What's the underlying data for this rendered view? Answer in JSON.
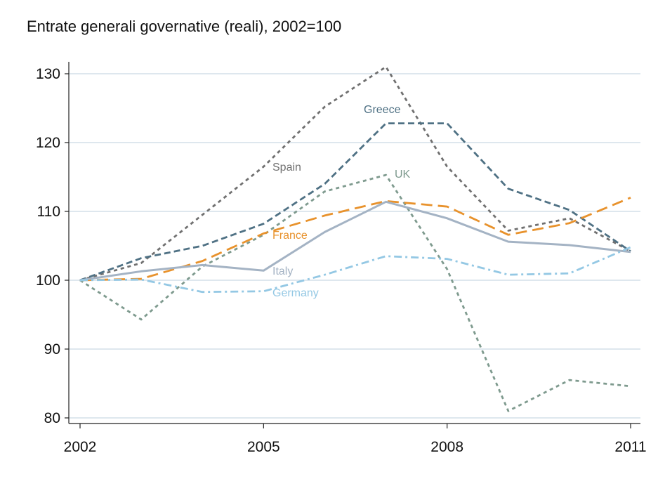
{
  "chart_data": {
    "type": "line",
    "title": "Entrate generali governative (reali), 2002=100",
    "xlabel": "",
    "ylabel": "",
    "x": [
      2002,
      2003,
      2004,
      2005,
      2006,
      2007,
      2008,
      2009,
      2010,
      2011
    ],
    "xticks": [
      2002,
      2005,
      2008,
      2011
    ],
    "xlim": [
      2002,
      2011
    ],
    "ylim": [
      80,
      131
    ],
    "yticks": [
      80,
      90,
      100,
      110,
      120,
      130
    ],
    "grid": true,
    "legend": "inline labels",
    "series": [
      {
        "name": "Spain",
        "color": "#707070",
        "dash": "short-dash",
        "values": [
          100,
          102.5,
          109.5,
          116.5,
          125.2,
          131.0,
          116.5,
          107.2,
          109.0,
          104.2
        ]
      },
      {
        "name": "Greece",
        "color": "#4f7184",
        "dash": "dash",
        "values": [
          100,
          103.2,
          105.0,
          108.2,
          114.0,
          122.8,
          122.8,
          113.3,
          110.2,
          104.2
        ]
      },
      {
        "name": "UK",
        "color": "#7e9a8e",
        "dash": "short-dash",
        "values": [
          100,
          94.3,
          102.0,
          106.6,
          112.9,
          115.3,
          101.6,
          81.0,
          85.5,
          84.6
        ]
      },
      {
        "name": "France",
        "color": "#e8922c",
        "dash": "long-dash",
        "values": [
          100,
          100.2,
          102.8,
          106.8,
          109.4,
          111.5,
          110.7,
          106.6,
          108.3,
          112.0
        ]
      },
      {
        "name": "Italy",
        "color": "#a4b3c4",
        "dash": "solid",
        "values": [
          100,
          101.3,
          102.2,
          101.4,
          107.0,
          111.4,
          109.0,
          105.6,
          105.1,
          104.1
        ]
      },
      {
        "name": "Germany",
        "color": "#94c8e4",
        "dash": "dash-dot",
        "values": [
          100,
          100.1,
          98.3,
          98.4,
          100.8,
          103.5,
          103.1,
          100.8,
          101.0,
          104.8
        ]
      }
    ]
  }
}
